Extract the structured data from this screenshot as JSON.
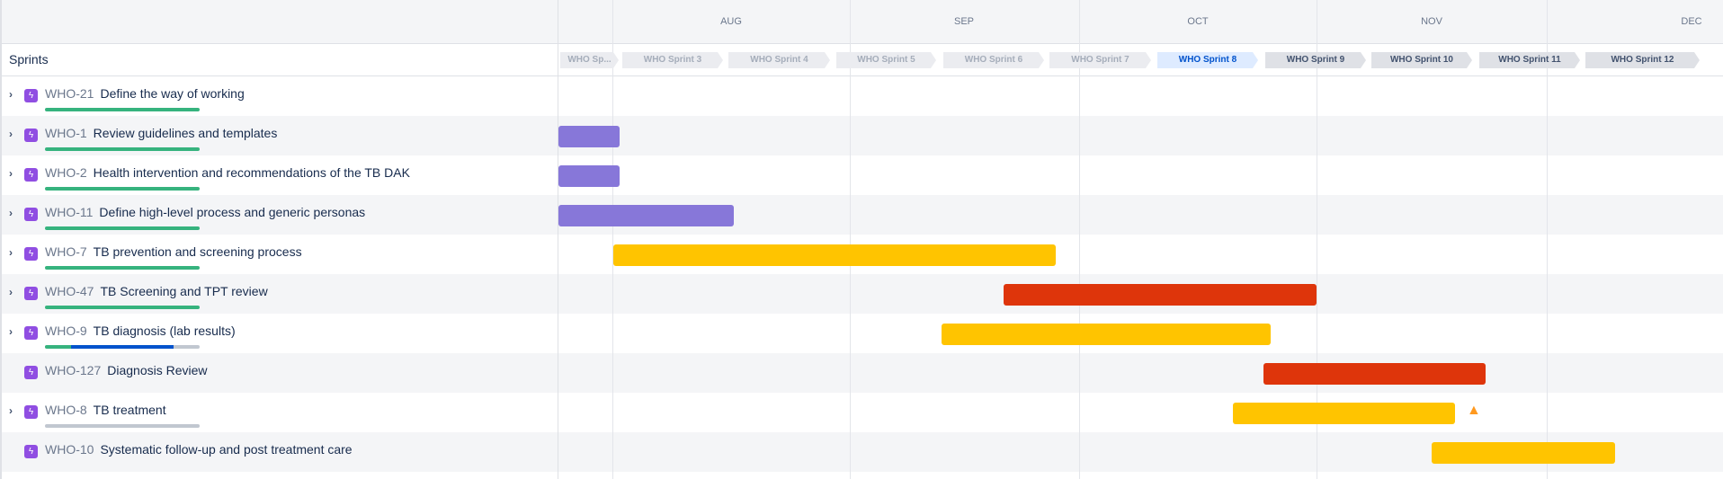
{
  "sidebar": {
    "sprints_label": "Sprints"
  },
  "timeline": {
    "months": [
      "AUG",
      "SEP",
      "OCT",
      "NOV",
      "DEC"
    ],
    "sprints": [
      {
        "label": "WHO Sp...",
        "state": "past"
      },
      {
        "label": "WHO Sprint 3",
        "state": "past"
      },
      {
        "label": "WHO Sprint 4",
        "state": "past"
      },
      {
        "label": "WHO Sprint 5",
        "state": "past"
      },
      {
        "label": "WHO Sprint 6",
        "state": "past"
      },
      {
        "label": "WHO Sprint 7",
        "state": "past"
      },
      {
        "label": "WHO Sprint 8",
        "state": "active"
      },
      {
        "label": "WHO Sprint 9",
        "state": "future"
      },
      {
        "label": "WHO Sprint 10",
        "state": "future"
      },
      {
        "label": "WHO Sprint 11",
        "state": "future"
      },
      {
        "label": "WHO Sprint 12",
        "state": "future"
      }
    ]
  },
  "colors": {
    "purple": "#8777d9",
    "yellow": "#ffc400",
    "red": "#de350b",
    "done": "#36b37e",
    "in_progress": "#0052cc",
    "todo": "#c1c7d0"
  },
  "epics": [
    {
      "key": "WHO-21",
      "title": "Define the way of working",
      "expandable": true,
      "progress": {
        "done": 100,
        "in_progress": 0
      },
      "bar_color": null
    },
    {
      "key": "WHO-1",
      "title": "Review guidelines and templates",
      "expandable": true,
      "progress": {
        "done": 100,
        "in_progress": 0
      },
      "bar_color": "#8777d9"
    },
    {
      "key": "WHO-2",
      "title": "Health intervention and recommendations of the TB DAK",
      "expandable": true,
      "progress": {
        "done": 100,
        "in_progress": 0
      },
      "bar_color": "#8777d9"
    },
    {
      "key": "WHO-11",
      "title": "Define high-level process and generic personas",
      "expandable": true,
      "progress": {
        "done": 100,
        "in_progress": 0
      },
      "bar_color": "#8777d9"
    },
    {
      "key": "WHO-7",
      "title": "TB prevention and screening process",
      "expandable": true,
      "progress": {
        "done": 100,
        "in_progress": 0
      },
      "bar_color": "#ffc400"
    },
    {
      "key": "WHO-47",
      "title": "TB Screening and TPT review",
      "expandable": true,
      "progress": {
        "done": 100,
        "in_progress": 0
      },
      "bar_color": "#de350b"
    },
    {
      "key": "WHO-9",
      "title": "TB diagnosis (lab results)",
      "expandable": true,
      "progress": {
        "done": 17,
        "in_progress": 66
      },
      "bar_color": "#ffc400"
    },
    {
      "key": "WHO-127",
      "title": "Diagnosis Review",
      "expandable": false,
      "progress": null,
      "bar_color": "#de350b"
    },
    {
      "key": "WHO-8",
      "title": "TB treatment",
      "expandable": true,
      "progress": {
        "done": 0,
        "in_progress": 0
      },
      "bar_color": "#ffc400",
      "warning": true
    },
    {
      "key": "WHO-10",
      "title": "Systematic follow-up and post treatment care",
      "expandable": false,
      "progress": null,
      "bar_color": "#ffc400"
    }
  ]
}
